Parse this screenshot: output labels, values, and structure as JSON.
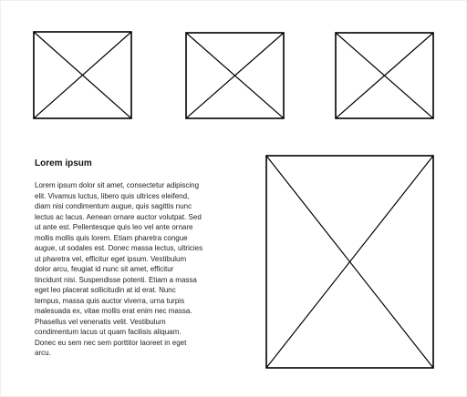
{
  "content": {
    "heading": "Lorem ipsum",
    "paragraph_lines": [
      "Lorem ipsum dolor sit amet, consectetur adipiscing",
      "elit. Vivamus luctus, libero quis ultrices eleifend,",
      "diam nisi condimentum augue, quis sagittis nunc",
      "lectus ac lacus. Aenean ornare auctor volutpat. Sed",
      "ut ante est. Pellentesque quis leo vel ante ornare",
      "mollis mollis quis lorem. Etiam pharetra congue",
      "augue, ut sodales est. Donec massa lectus, ultricies",
      "ut pharetra vel, efficitur eget ipsum. Vestibulum",
      "dolor arcu, feugiat id nunc sit amet, efficitur",
      "tincidunt nisi. Suspendisse potenti. Etiam a massa",
      "eget leo placerat sollicitudin at id erat. Nunc",
      "tempus, massa quis auctor viverra, urna turpis",
      "malesuada ex, vitae mollis erat enim nec massa.",
      "Phasellus vel venenatis velit. Vestibulum",
      "condimentum lacus ut quam facilisis aliquam.",
      "Donec eu sem nec sem porttitor laoreet in eget",
      "arcu."
    ]
  },
  "colors": {
    "background": "#ffffff",
    "stroke": "#000000",
    "text": "#222222"
  },
  "placeholders": [
    {
      "name": "image-placeholder-top-left",
      "icon": "image-placeholder-icon"
    },
    {
      "name": "image-placeholder-top-middle",
      "icon": "image-placeholder-icon"
    },
    {
      "name": "image-placeholder-top-right",
      "icon": "image-placeholder-icon"
    },
    {
      "name": "image-placeholder-large",
      "icon": "image-placeholder-icon"
    }
  ]
}
